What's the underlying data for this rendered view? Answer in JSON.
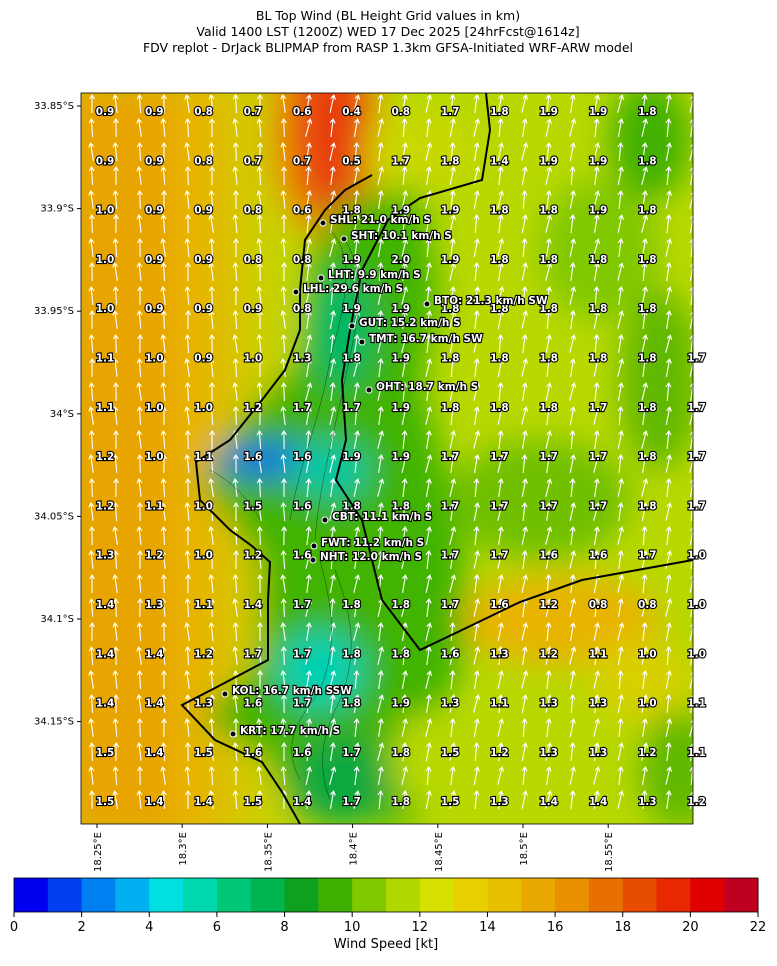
{
  "header": {
    "title_lines": [
      "BL Top Wind (BL Height Grid values in km)",
      "Valid 1400 LST (1200Z) WED 17 Dec 2025 [24hrFcst@1614z]",
      "FDV replot - DrJack BLIPMAP from RASP 1.3km GFSA-Initiated WRF-ARW model"
    ]
  },
  "grid": {
    "rows": [
      [
        "0.9",
        "0.9",
        "0.8",
        "0.7",
        "0.6",
        "0.4",
        "0.8",
        "1.7",
        "1.8",
        "1.9",
        "1.9",
        "1.8",
        null
      ],
      [
        "0.9",
        "0.9",
        "0.8",
        "0.7",
        "0.7",
        "0.5",
        "1.7",
        "1.8",
        "1.4",
        "1.9",
        "1.9",
        "1.8",
        null
      ],
      [
        "1.0",
        "0.9",
        "0.9",
        "0.8",
        "0.6",
        "1.8",
        "1.9",
        "1.9",
        "1.8",
        "1.8",
        "1.9",
        "1.8",
        null
      ],
      [
        "1.0",
        "0.9",
        "0.9",
        "0.8",
        "0.8",
        "1.9",
        "2.0",
        "1.9",
        "1.8",
        "1.8",
        "1.8",
        "1.8",
        null
      ],
      [
        "1.0",
        "0.9",
        "0.9",
        "0.9",
        "0.8",
        "1.9",
        "1.9",
        "1.8",
        "1.8",
        "1.8",
        "1.8",
        "1.8",
        null
      ],
      [
        "1.1",
        "1.0",
        "0.9",
        "1.0",
        "1.3",
        "1.8",
        "1.9",
        "1.8",
        "1.8",
        "1.8",
        "1.8",
        "1.8",
        "1.7"
      ],
      [
        "1.1",
        "1.0",
        "1.0",
        "1.2",
        "1.7",
        "1.7",
        "1.9",
        "1.8",
        "1.8",
        "1.8",
        "1.7",
        "1.8",
        "1.7"
      ],
      [
        "1.2",
        "1.0",
        "1.1",
        "1.6",
        "1.6",
        "1.9",
        "1.9",
        "1.7",
        "1.7",
        "1.7",
        "1.7",
        "1.8",
        "1.7"
      ],
      [
        "1.2",
        "1.1",
        "1.0",
        "1.5",
        "1.6",
        "1.8",
        "1.8",
        "1.7",
        "1.7",
        "1.7",
        "1.7",
        "1.8",
        "1.7"
      ],
      [
        "1.3",
        "1.2",
        "1.0",
        "1.2",
        "1.6",
        null,
        null,
        "1.7",
        "1.7",
        "1.6",
        "1.6",
        "1.7",
        "1.0"
      ],
      [
        "1.4",
        "1.3",
        "1.1",
        "1.4",
        "1.7",
        "1.8",
        "1.8",
        "1.7",
        "1.6",
        "1.2",
        "0.8",
        "0.8",
        "1.0"
      ],
      [
        "1.4",
        "1.4",
        "1.2",
        "1.7",
        "1.7",
        "1.8",
        "1.8",
        "1.6",
        "1.3",
        "1.2",
        "1.1",
        "1.0",
        "1.0"
      ],
      [
        "1.4",
        "1.4",
        "1.3",
        "1.6",
        "1.7",
        "1.8",
        "1.9",
        "1.3",
        "1.1",
        "1.3",
        "1.3",
        "1.0",
        "1.1"
      ],
      [
        "1.5",
        "1.4",
        "1.5",
        "1.6",
        "1.6",
        "1.7",
        "1.8",
        "1.5",
        "1.2",
        "1.3",
        "1.3",
        "1.2",
        "1.1"
      ],
      [
        "1.5",
        "1.4",
        "1.4",
        "1.5",
        "1.4",
        "1.7",
        "1.8",
        "1.5",
        "1.3",
        "1.4",
        "1.4",
        "1.3",
        "1.2"
      ]
    ]
  },
  "stations": [
    "SHL: 21.0 km/h S",
    "SHT: 10.1 km/h S",
    "LHT: 9.9 km/h S",
    "LHL: 29.6 km/h S",
    "BTO: 21.3 km/h SW",
    "GUT: 15.2 km/h S",
    "TMT: 16.7 km/h SW",
    "OHT: 18.7 km/h S",
    "CBT: 11.1 km/h S",
    "FWT: 11.2 km/h S",
    "NHT: 12.0 km/h S",
    "KOL: 16.7 km/h SSW",
    "KRT: 17.7 km/h S"
  ],
  "axes": {
    "lat_ticks": [
      "33.85°S",
      "33.9°S",
      "33.95°S",
      "34°S",
      "34.05°S",
      "34.1°S",
      "34.15°S"
    ],
    "lon_ticks": [
      "18.25°E",
      "18.3°E",
      "18.35°E",
      "18.4°E",
      "18.45°E",
      "18.5°E",
      "18.55°E"
    ]
  },
  "colorbar": {
    "label": "Wind Speed [kt]",
    "lim": [
      0,
      22
    ],
    "ticks": [
      0,
      2,
      4,
      6,
      8,
      10,
      12,
      14,
      16,
      18,
      20,
      22
    ],
    "colors": [
      "#0000f0",
      "#0040f0",
      "#0080f0",
      "#00b0f0",
      "#00e0e0",
      "#00d8b0",
      "#00c878",
      "#00b450",
      "#10a020",
      "#40b000",
      "#80c800",
      "#b0d800",
      "#d8e000",
      "#e8d000",
      "#e8c000",
      "#e8a800",
      "#e89000",
      "#e87000",
      "#e84c00",
      "#e82800",
      "#e00000",
      "#c00020"
    ]
  }
}
